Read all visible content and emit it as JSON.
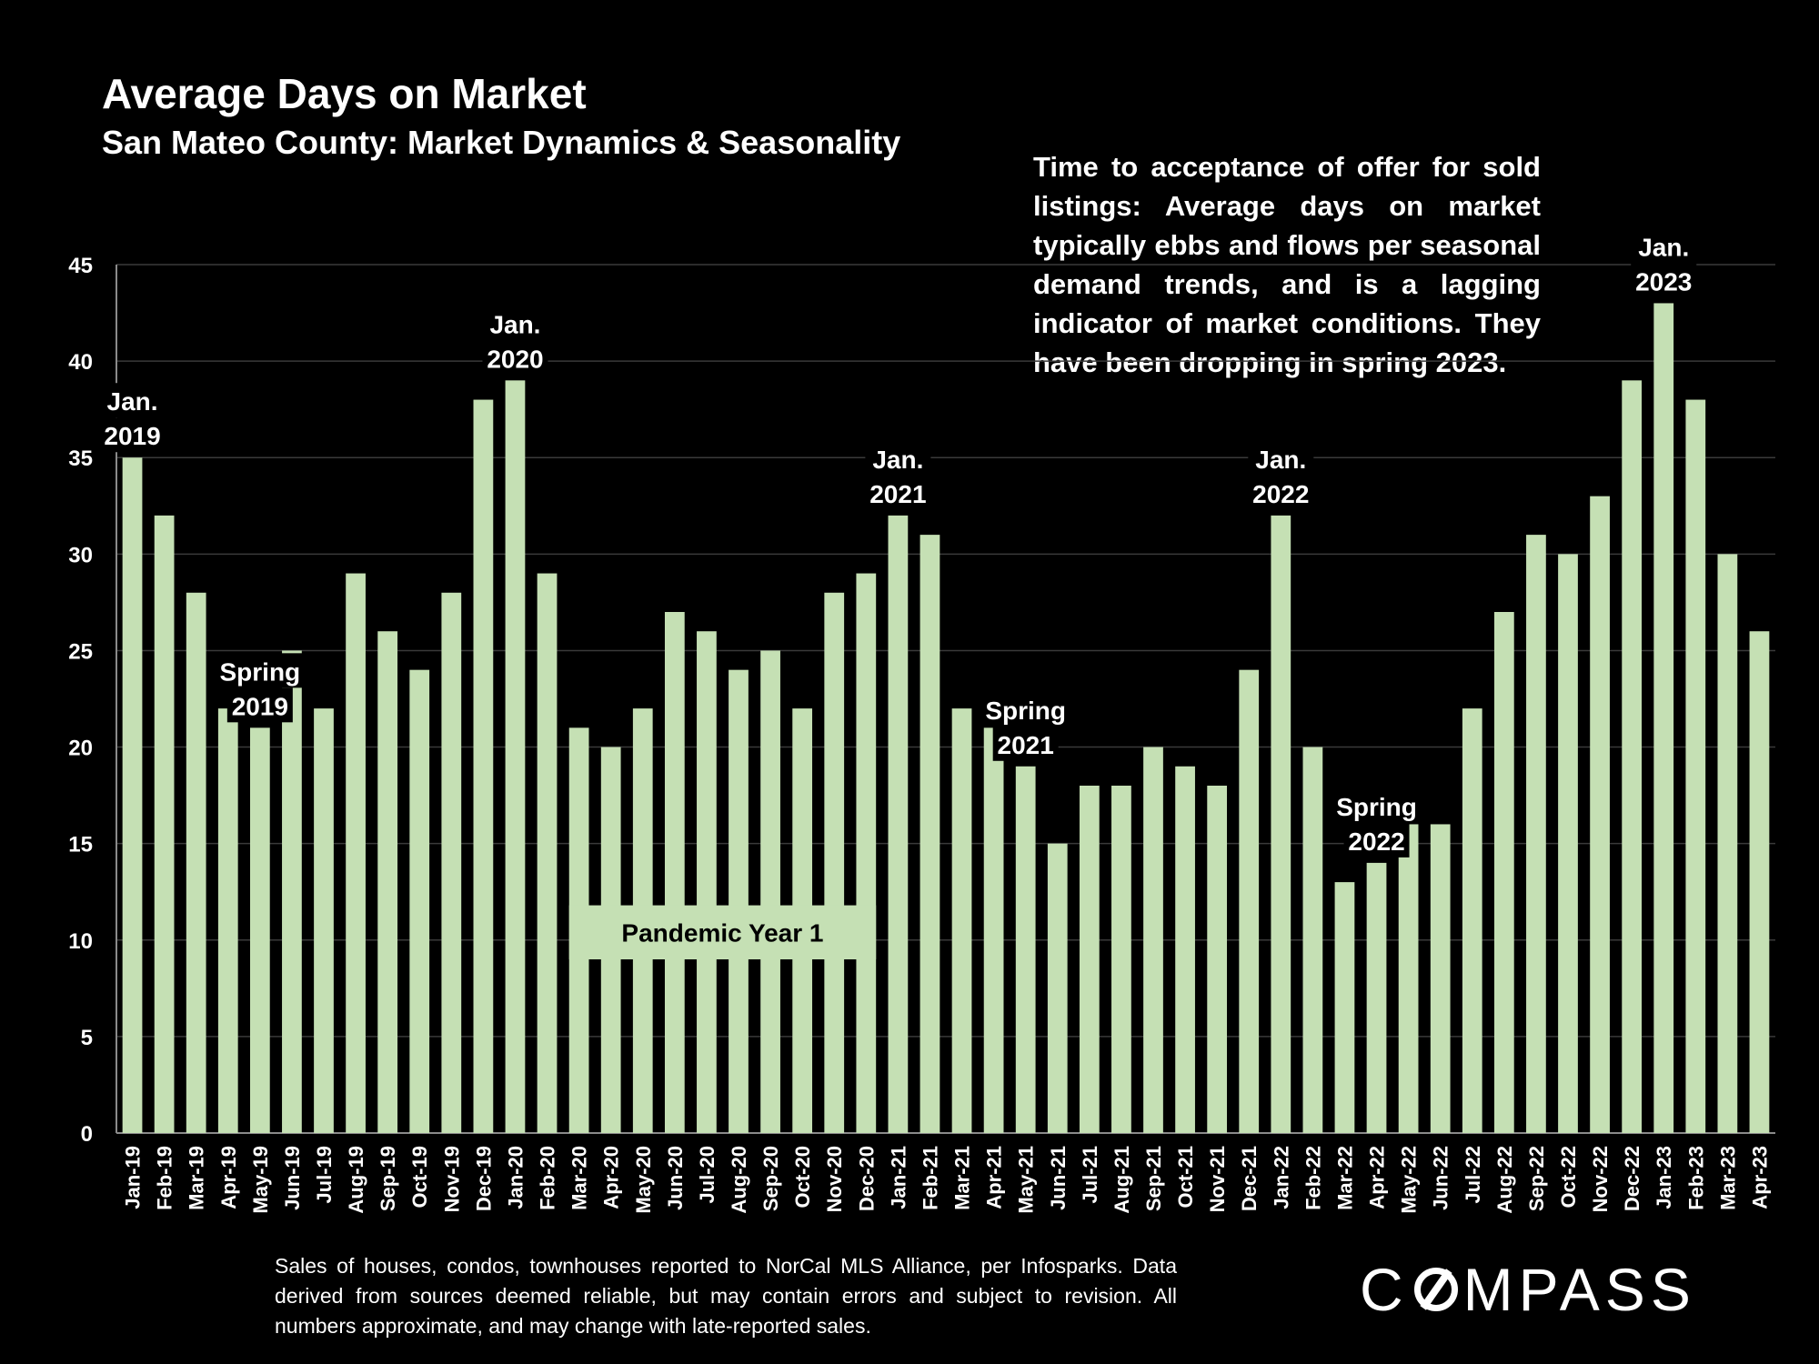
{
  "header": {
    "title": "Average Days on Market",
    "subtitle": "San Mateo County: Market Dynamics & Seasonality"
  },
  "description": "Time to acceptance of offer for sold listings: Average days on market typically ebbs and flows per seasonal demand trends, and is a lagging indicator of market conditions. They have been dropping in spring 2023.",
  "footer": {
    "note": "Sales of houses, condos, townhouses reported to NorCal MLS Alliance, per Infosparks. Data derived from sources deemed reliable, but may contain errors and subject to revision. All numbers approximate, and may change with late-reported sales.",
    "logo_pre": "C",
    "logo_post": "MPASS"
  },
  "colors": {
    "bar": "#c5e0b4",
    "background": "#000000",
    "text": "#ffffff",
    "gridline": "#3a3a3a"
  },
  "chart_data": {
    "type": "bar",
    "title": "Average Days on Market",
    "xlabel": "",
    "ylabel": "",
    "ylim": [
      0,
      45
    ],
    "yticks": [
      0,
      5,
      10,
      15,
      20,
      25,
      30,
      35,
      40,
      45
    ],
    "grid": true,
    "categories": [
      "Jan-19",
      "Feb-19",
      "Mar-19",
      "Apr-19",
      "May-19",
      "Jun-19",
      "Jul-19",
      "Aug-19",
      "Sep-19",
      "Oct-19",
      "Nov-19",
      "Dec-19",
      "Jan-20",
      "Feb-20",
      "Mar-20",
      "Apr-20",
      "May-20",
      "Jun-20",
      "Jul-20",
      "Aug-20",
      "Sep-20",
      "Oct-20",
      "Nov-20",
      "Dec-20",
      "Jan-21",
      "Feb-21",
      "Mar-21",
      "Apr-21",
      "May-21",
      "Jun-21",
      "Jul-21",
      "Aug-21",
      "Sep-21",
      "Oct-21",
      "Nov-21",
      "Dec-21",
      "Jan-22",
      "Feb-22",
      "Mar-22",
      "Apr-22",
      "May-22",
      "Jun-22",
      "Jul-22",
      "Aug-22",
      "Sep-22",
      "Oct-22",
      "Nov-22",
      "Dec-22",
      "Jan-23",
      "Feb-23",
      "Mar-23",
      "Apr-23"
    ],
    "values": [
      35,
      32,
      28,
      22,
      21,
      25,
      22,
      29,
      26,
      24,
      28,
      38,
      39,
      29,
      21,
      20,
      22,
      27,
      26,
      24,
      25,
      22,
      28,
      29,
      32,
      31,
      22,
      21,
      19,
      15,
      18,
      18,
      20,
      19,
      18,
      24,
      32,
      20,
      13,
      14,
      16,
      16,
      22,
      27,
      31,
      30,
      33,
      39,
      43,
      38,
      30,
      26
    ],
    "annotations": [
      {
        "lines": [
          "Jan.",
          "2019"
        ],
        "category": "Jan-19"
      },
      {
        "lines": [
          "Spring",
          "2019"
        ],
        "category": "May-19"
      },
      {
        "lines": [
          "Jan.",
          "2020"
        ],
        "category": "Jan-20"
      },
      {
        "lines": [
          "Jan.",
          "2021"
        ],
        "category": "Jan-21"
      },
      {
        "lines": [
          "Spring",
          "2021"
        ],
        "category": "May-21"
      },
      {
        "lines": [
          "Jan.",
          "2022"
        ],
        "category": "Jan-22"
      },
      {
        "lines": [
          "Spring",
          "2022"
        ],
        "category": "Apr-22"
      },
      {
        "lines": [
          "Jan.",
          "2023"
        ],
        "category": "Jan-23"
      }
    ],
    "period_label": {
      "text": "Pandemic Year 1",
      "from": "Mar-20",
      "to": "Dec-20"
    }
  }
}
